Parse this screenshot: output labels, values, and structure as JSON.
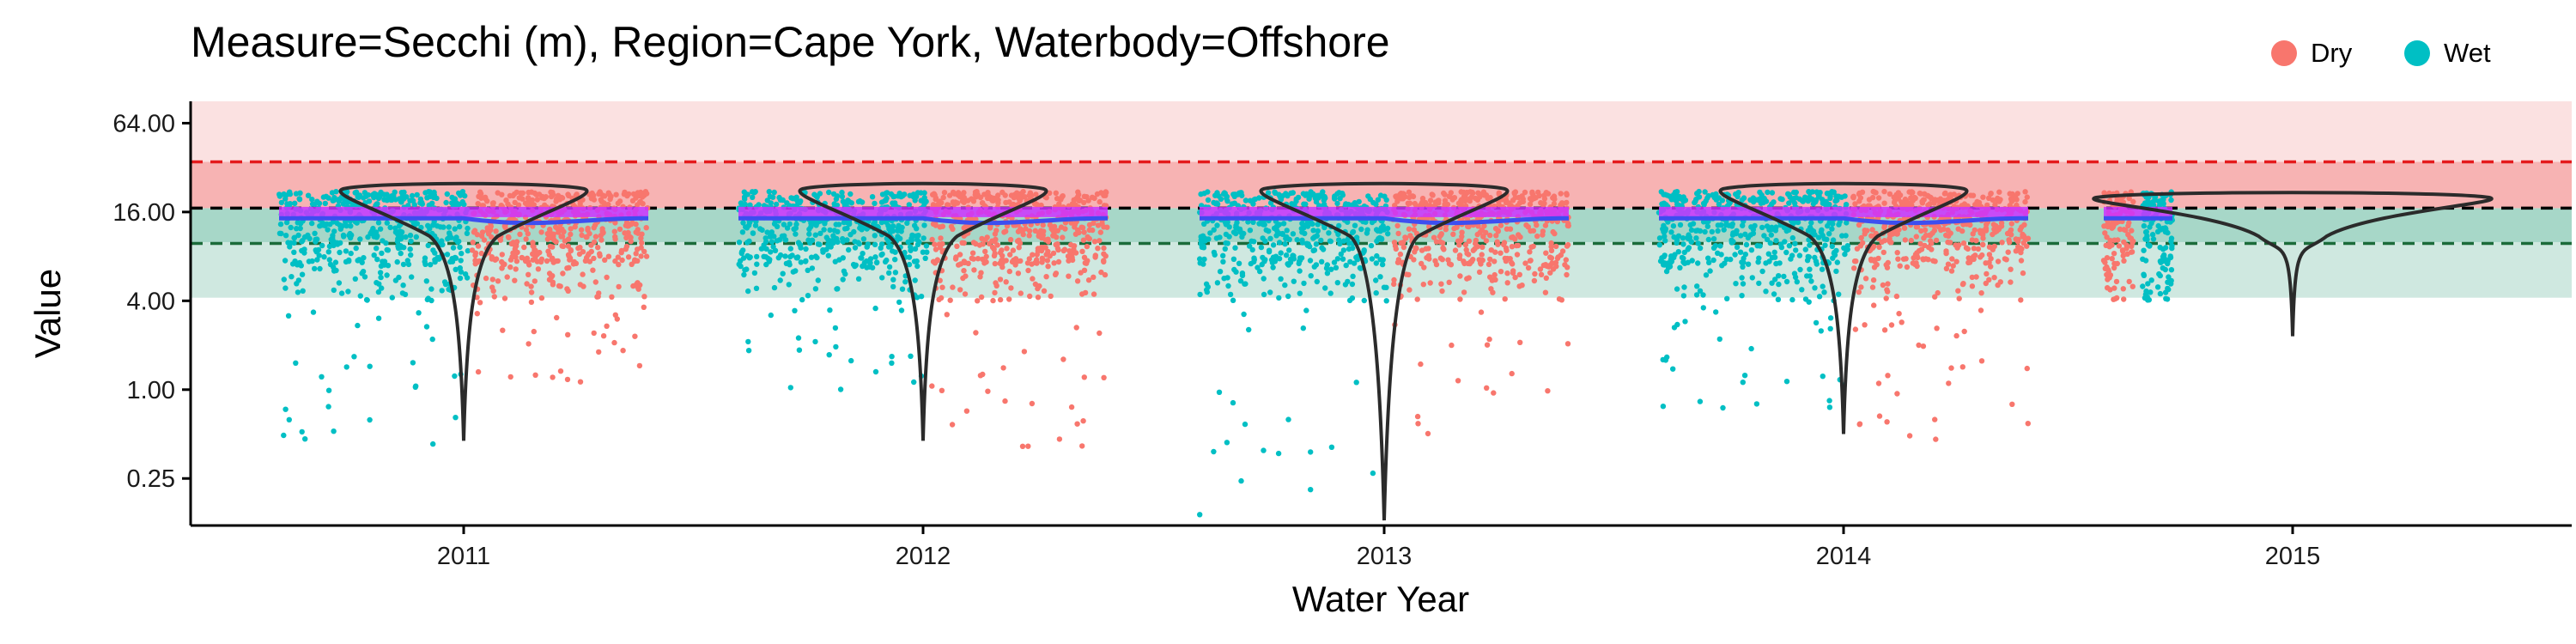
{
  "chart_data": {
    "type": "scatter",
    "title": "Measure=Secchi (m), Region=Cape York, Waterbody=Offshore",
    "xlabel": "Water Year",
    "ylabel": "Value",
    "y_scale": "log2",
    "ylim": [
      0.12,
      90
    ],
    "y_ticks": [
      {
        "value": 0.25,
        "label": "0.25"
      },
      {
        "value": 1,
        "label": "1.00"
      },
      {
        "value": 4,
        "label": "4.00"
      },
      {
        "value": 16,
        "label": "16.00"
      },
      {
        "value": 64,
        "label": "64.00"
      }
    ],
    "categories": [
      "2011",
      "2012",
      "2013",
      "2014",
      "2015"
    ],
    "legend": {
      "position": "top-right",
      "entries": [
        {
          "name": "Dry",
          "color": "#F8766D"
        },
        {
          "name": "Wet",
          "color": "#00BFC4"
        }
      ]
    },
    "reference_bands": [
      {
        "from": 4.2,
        "to": 10,
        "color": "#cfe8e0"
      },
      {
        "from": 10,
        "to": 17,
        "color": "#a7d7c8"
      },
      {
        "from": 17,
        "to": 35,
        "color": "#f7b3b3"
      },
      {
        "from": 35,
        "to": 90,
        "color": "#fbe1e1"
      }
    ],
    "reference_lines": [
      {
        "value": 35,
        "color": "#e41a1c"
      },
      {
        "value": 17,
        "color": "#000000"
      },
      {
        "value": 9.8,
        "color": "#1b6b3a"
      }
    ],
    "years": [
      {
        "year": "2011",
        "wet_min": 0.4,
        "dry_min": 1.1,
        "violin_min": 0.45,
        "violin_mode": 23,
        "median": 14
      },
      {
        "year": "2012",
        "wet_min": 1.0,
        "dry_min": 0.4,
        "violin_min": 0.45,
        "violin_mode": 23,
        "median": 14
      },
      {
        "year": "2013",
        "wet_min": 0.14,
        "dry_min": 0.45,
        "violin_min": 0.13,
        "violin_mode": 23,
        "median": 13.5
      },
      {
        "year": "2014",
        "wet_min": 0.7,
        "dry_min": 0.45,
        "violin_min": 0.5,
        "violin_mode": 23,
        "median": 14
      },
      {
        "year": "2015",
        "wet_min": 5.5,
        "dry_min": 7,
        "violin_min": 2.3,
        "violin_mode": 20,
        "median": 15
      }
    ],
    "colors": {
      "dry": "#F8766D",
      "wet": "#00BFC4",
      "trend": "#3d4ef0",
      "median_band": "#cc33ff",
      "violin": "#2b2b2b"
    },
    "grid": false
  }
}
